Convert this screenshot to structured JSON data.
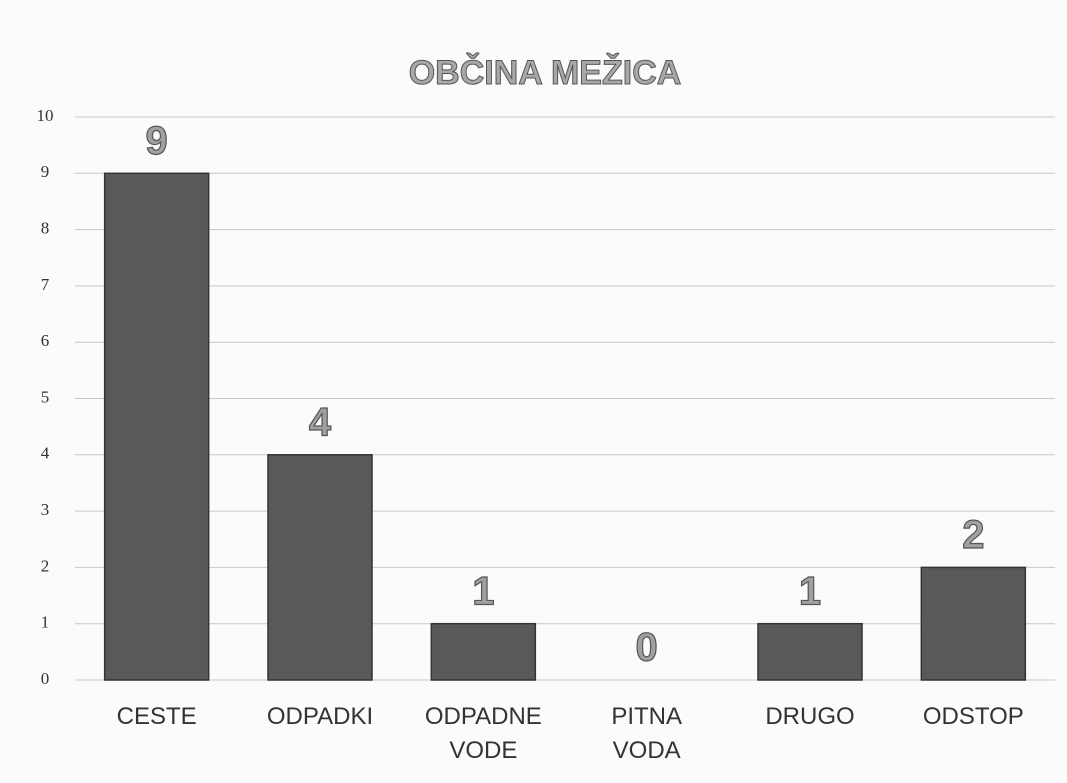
{
  "chart_data": {
    "type": "bar",
    "title": "OBČINA MEŽICA",
    "categories": [
      "CESTE",
      "ODPADKI",
      "ODPADNE\nVODE",
      "PITNA\nVODA",
      "DRUGO",
      "ODSTOP"
    ],
    "values": [
      9,
      4,
      1,
      0,
      1,
      2
    ],
    "color": "#595959",
    "ylim": [
      0,
      10
    ],
    "yticks": [
      0,
      1,
      2,
      3,
      4,
      5,
      6,
      7,
      8,
      9,
      10
    ],
    "grid": true
  }
}
